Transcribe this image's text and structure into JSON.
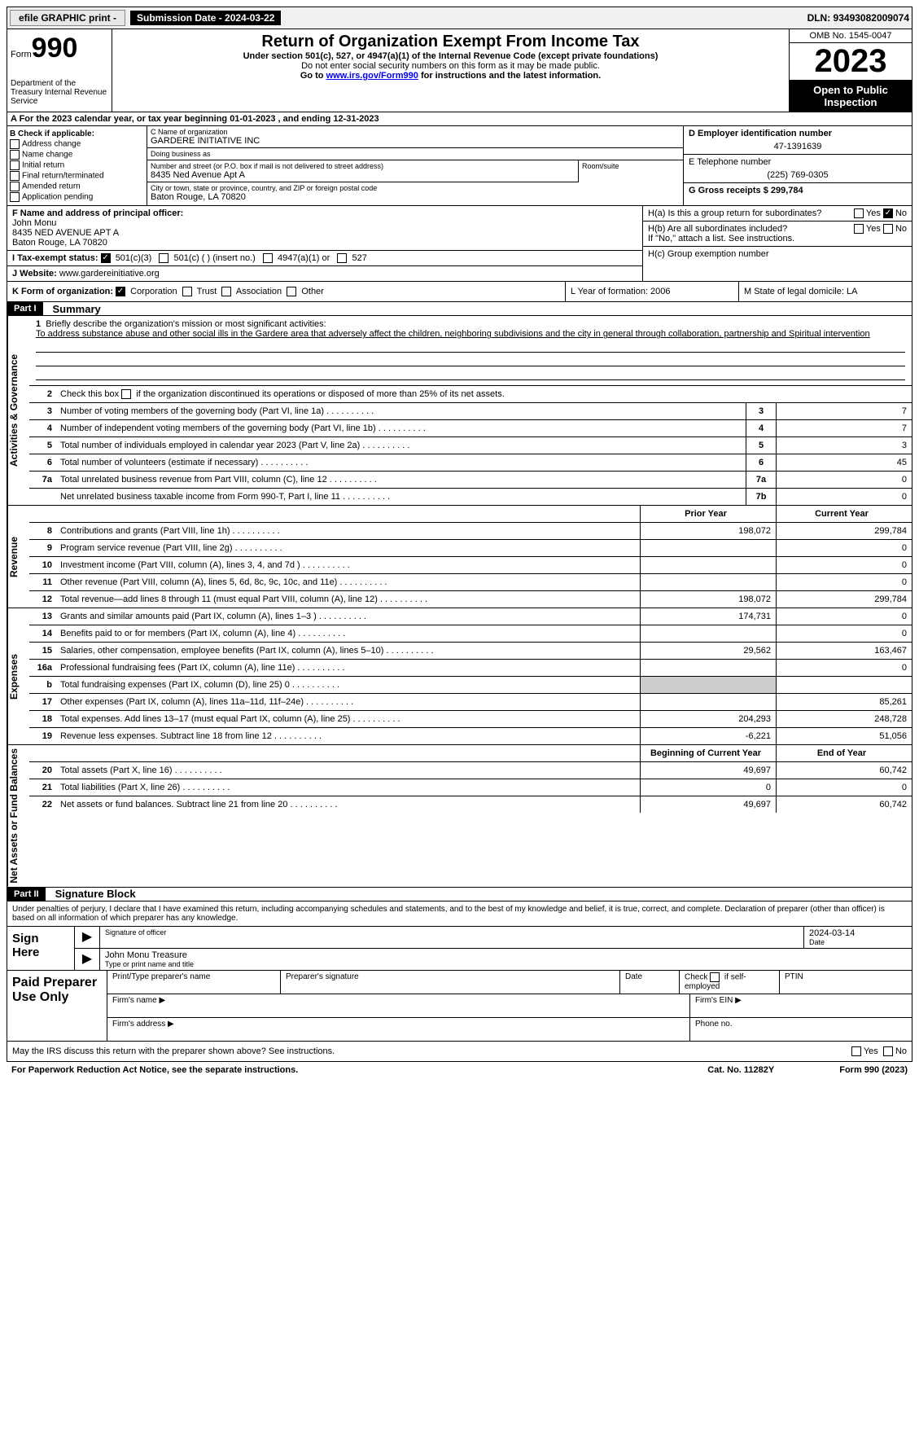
{
  "topbar": {
    "efile": "efile GRAPHIC print -",
    "submission_label": "Submission Date - 2024-03-22",
    "dln": "DLN: 93493082009074"
  },
  "header": {
    "form_label": "Form",
    "form_num": "990",
    "dept": "Department of the Treasury Internal Revenue Service",
    "title": "Return of Organization Exempt From Income Tax",
    "sub1": "Under section 501(c), 527, or 4947(a)(1) of the Internal Revenue Code (except private foundations)",
    "sub2": "Do not enter social security numbers on this form as it may be made public.",
    "sub3_pre": "Go to ",
    "sub3_link": "www.irs.gov/Form990",
    "sub3_post": " for instructions and the latest information.",
    "omb": "OMB No. 1545-0047",
    "year": "2023",
    "open": "Open to Public Inspection"
  },
  "row_a": "A For the 2023 calendar year, or tax year beginning 01-01-2023   , and ending 12-31-2023",
  "section_b": {
    "title": "B Check if applicable:",
    "items": [
      "Address change",
      "Name change",
      "Initial return",
      "Final return/terminated",
      "Amended return",
      "Application pending"
    ]
  },
  "section_c": {
    "name_lbl": "C Name of organization",
    "name": "GARDERE INITIATIVE INC",
    "dba_lbl": "Doing business as",
    "dba": "",
    "addr_lbl": "Number and street (or P.O. box if mail is not delivered to street address)",
    "addr": "8435 Ned Avenue Apt A",
    "room_lbl": "Room/suite",
    "city_lbl": "City or town, state or province, country, and ZIP or foreign postal code",
    "city": "Baton Rouge, LA  70820"
  },
  "section_d": {
    "lbl": "D Employer identification number",
    "val": "47-1391639"
  },
  "section_e": {
    "lbl": "E Telephone number",
    "val": "(225) 769-0305"
  },
  "section_g": {
    "lbl": "G Gross receipts $ 299,784"
  },
  "section_f": {
    "lbl": "F  Name and address of principal officer:",
    "name": "John Monu",
    "addr": "8435 NED AVENUE APT A",
    "city": "Baton Rouge, LA  70820"
  },
  "section_h": {
    "a": "H(a)  Is this a group return for subordinates?",
    "b": "H(b)  Are all subordinates included?",
    "b_note": "If \"No,\" attach a list. See instructions.",
    "c": "H(c)  Group exemption number ",
    "yes": "Yes",
    "no": "No"
  },
  "section_i": {
    "lbl": "I   Tax-exempt status:",
    "opts": [
      "501(c)(3)",
      "501(c) (  ) (insert no.)",
      "4947(a)(1) or",
      "527"
    ]
  },
  "section_j": {
    "lbl": "J   Website: ",
    "val": "www.gardereinitiative.org"
  },
  "section_k": {
    "lbl": "K Form of organization:",
    "opts": [
      "Corporation",
      "Trust",
      "Association",
      "Other"
    ]
  },
  "section_l": "L Year of formation: 2006",
  "section_m": "M State of legal domicile: LA",
  "part1": {
    "hdr": "Part I",
    "title": "Summary",
    "vlabel1": "Activities & Governance",
    "vlabel2": "Revenue",
    "vlabel3": "Expenses",
    "vlabel4": "Net Assets or Fund Balances",
    "l1_lbl": "Briefly describe the organization's mission or most significant activities:",
    "l1_text": "To address substance abuse and other social ills in the Gardere area that adversely affect the children, neighboring subdivisions and the city in general through collaboration, partnership and Spiritual intervention",
    "l2": "Check this box        if the organization discontinued its operations or disposed of more than 25% of its net assets.",
    "lines_ag": [
      {
        "n": "3",
        "d": "Number of voting members of the governing body (Part VI, line 1a)",
        "b": "3",
        "v": "7"
      },
      {
        "n": "4",
        "d": "Number of independent voting members of the governing body (Part VI, line 1b)",
        "b": "4",
        "v": "7"
      },
      {
        "n": "5",
        "d": "Total number of individuals employed in calendar year 2023 (Part V, line 2a)",
        "b": "5",
        "v": "3"
      },
      {
        "n": "6",
        "d": "Total number of volunteers (estimate if necessary)",
        "b": "6",
        "v": "45"
      },
      {
        "n": "7a",
        "d": "Total unrelated business revenue from Part VIII, column (C), line 12",
        "b": "7a",
        "v": "0"
      },
      {
        "n": "",
        "d": "Net unrelated business taxable income from Form 990-T, Part I, line 11",
        "b": "7b",
        "v": "0"
      }
    ],
    "col_py": "Prior Year",
    "col_cy": "Current Year",
    "lines_rev": [
      {
        "n": "8",
        "d": "Contributions and grants (Part VIII, line 1h)",
        "py": "198,072",
        "cy": "299,784"
      },
      {
        "n": "9",
        "d": "Program service revenue (Part VIII, line 2g)",
        "py": "",
        "cy": "0"
      },
      {
        "n": "10",
        "d": "Investment income (Part VIII, column (A), lines 3, 4, and 7d )",
        "py": "",
        "cy": "0"
      },
      {
        "n": "11",
        "d": "Other revenue (Part VIII, column (A), lines 5, 6d, 8c, 9c, 10c, and 11e)",
        "py": "",
        "cy": "0"
      },
      {
        "n": "12",
        "d": "Total revenue—add lines 8 through 11 (must equal Part VIII, column (A), line 12)",
        "py": "198,072",
        "cy": "299,784"
      }
    ],
    "lines_exp": [
      {
        "n": "13",
        "d": "Grants and similar amounts paid (Part IX, column (A), lines 1–3 )",
        "py": "174,731",
        "cy": "0"
      },
      {
        "n": "14",
        "d": "Benefits paid to or for members (Part IX, column (A), line 4)",
        "py": "",
        "cy": "0"
      },
      {
        "n": "15",
        "d": "Salaries, other compensation, employee benefits (Part IX, column (A), lines 5–10)",
        "py": "29,562",
        "cy": "163,467"
      },
      {
        "n": "16a",
        "d": "Professional fundraising fees (Part IX, column (A), line 11e)",
        "py": "",
        "cy": "0"
      },
      {
        "n": "b",
        "d": "Total fundraising expenses (Part IX, column (D), line 25) 0",
        "py": "gray",
        "cy": "gray"
      },
      {
        "n": "17",
        "d": "Other expenses (Part IX, column (A), lines 11a–11d, 11f–24e)",
        "py": "",
        "cy": "85,261"
      },
      {
        "n": "18",
        "d": "Total expenses. Add lines 13–17 (must equal Part IX, column (A), line 25)",
        "py": "204,293",
        "cy": "248,728"
      },
      {
        "n": "19",
        "d": "Revenue less expenses. Subtract line 18 from line 12",
        "py": "-6,221",
        "cy": "51,056"
      }
    ],
    "col_boy": "Beginning of Current Year",
    "col_eoy": "End of Year",
    "lines_na": [
      {
        "n": "20",
        "d": "Total assets (Part X, line 16)",
        "py": "49,697",
        "cy": "60,742"
      },
      {
        "n": "21",
        "d": "Total liabilities (Part X, line 26)",
        "py": "0",
        "cy": "0"
      },
      {
        "n": "22",
        "d": "Net assets or fund balances. Subtract line 21 from line 20",
        "py": "49,697",
        "cy": "60,742"
      }
    ]
  },
  "part2": {
    "hdr": "Part II",
    "title": "Signature Block",
    "text": "Under penalties of perjury, I declare that I have examined this return, including accompanying schedules and statements, and to the best of my knowledge and belief, it is true, correct, and complete. Declaration of preparer (other than officer) is based on all information of which preparer has any knowledge."
  },
  "sign": {
    "here": "Sign Here",
    "sig_lbl": "Signature of officer",
    "date_lbl": "Date",
    "date": "2024-03-14",
    "name": "John Monu Treasure",
    "name_lbl": "Type or print name and title"
  },
  "paid": {
    "title": "Paid Preparer Use Only",
    "h1": "Print/Type preparer's name",
    "h2": "Preparer's signature",
    "h3": "Date",
    "h4_pre": "Check",
    "h4_post": "if self-employed",
    "h5": "PTIN",
    "fn": "Firm's name ",
    "fa": "Firm's address ",
    "fe": "Firm's EIN ",
    "fp": "Phone no."
  },
  "footer": {
    "discuss": "May the IRS discuss this return with the preparer shown above? See instructions.",
    "yes": "Yes",
    "no": "No",
    "pra": "For Paperwork Reduction Act Notice, see the separate instructions.",
    "cat": "Cat. No. 11282Y",
    "form": "Form 990 (2023)"
  }
}
